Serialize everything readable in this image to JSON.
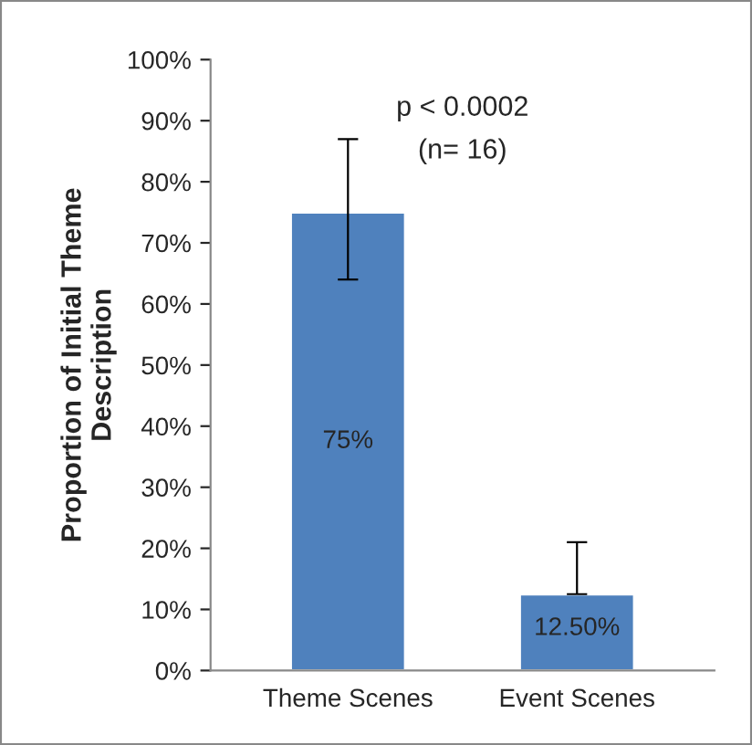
{
  "chart_data": {
    "type": "bar",
    "ylabel": "Proportion of Initial Theme\nDescription",
    "categories": [
      "Theme Scenes",
      "Event Scenes"
    ],
    "values": [
      75,
      12.5
    ],
    "color": "#4f81bd",
    "errors": [
      [
        64,
        87
      ],
      [
        12.5,
        21
      ]
    ],
    "value_labels": [
      "75%",
      "12.50%"
    ],
    "annotations": [
      "p < 0.0002",
      "(n= 16)"
    ],
    "ylim": [
      0,
      100
    ],
    "yticks": [
      {
        "value": 0,
        "label": "0%"
      },
      {
        "value": 10,
        "label": "10%"
      },
      {
        "value": 20,
        "label": "20%"
      },
      {
        "value": 30,
        "label": "30%"
      },
      {
        "value": 40,
        "label": "40%"
      },
      {
        "value": 50,
        "label": "50%"
      },
      {
        "value": 60,
        "label": "60%"
      },
      {
        "value": 70,
        "label": "70%"
      },
      {
        "value": 80,
        "label": "80%"
      },
      {
        "value": 90,
        "label": "90%"
      },
      {
        "value": 100,
        "label": "100%"
      }
    ],
    "grid": false
  }
}
